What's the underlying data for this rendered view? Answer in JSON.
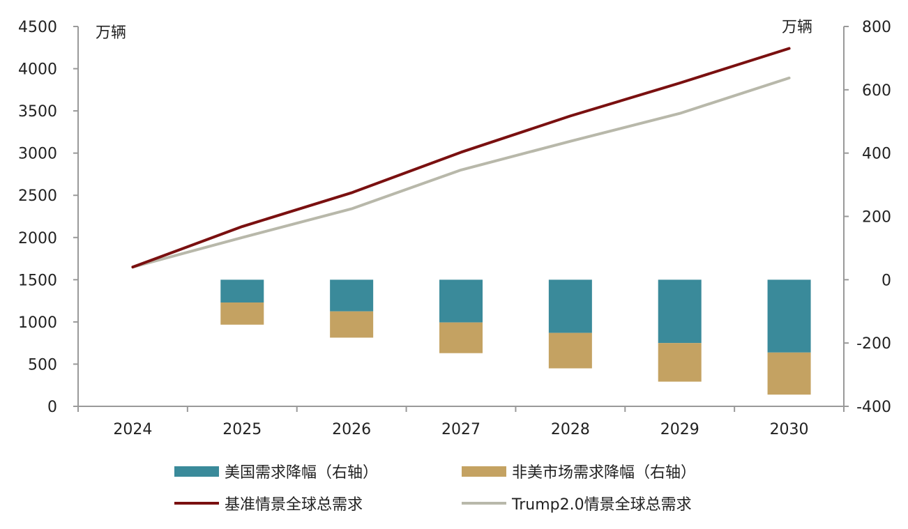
{
  "chart_data": {
    "type": "bar+line",
    "title": "",
    "categories": [
      "2024",
      "2025",
      "2026",
      "2027",
      "2028",
      "2029",
      "2030"
    ],
    "left_axis": {
      "unit": "万辆",
      "ylim": [
        0,
        4500
      ],
      "ticks": [
        "0",
        "500",
        "1000",
        "1500",
        "2000",
        "2500",
        "3000",
        "3500",
        "4000",
        "4500"
      ]
    },
    "right_axis": {
      "unit": "万辆",
      "ylim": [
        -400,
        800
      ],
      "ticks": [
        "-400",
        "-200",
        "0",
        "200",
        "400",
        "600",
        "800"
      ]
    },
    "bars": [
      {
        "name": "美国需求降幅（右轴）",
        "color": "#3a8a9a",
        "axis": "right",
        "values": [
          null,
          -72,
          -100,
          -135,
          -168,
          -200,
          -230
        ]
      },
      {
        "name": "非美市场需求降幅（右轴）",
        "color": "#c4a262",
        "axis": "right",
        "values": [
          null,
          -70,
          -83,
          -97,
          -112,
          -122,
          -133
        ]
      }
    ],
    "lines": [
      {
        "name": "基准情景全球总需求",
        "color": "#7a1010",
        "axis": "left",
        "values": [
          1650,
          2130,
          2530,
          3010,
          3440,
          3830,
          4240
        ]
      },
      {
        "name": "Trump2.0情景全球总需求",
        "color": "#b8b8aa",
        "axis": "left",
        "values": [
          1650,
          2000,
          2340,
          2800,
          3140,
          3470,
          3890
        ]
      }
    ],
    "grid": false,
    "legend_position": "bottom"
  }
}
